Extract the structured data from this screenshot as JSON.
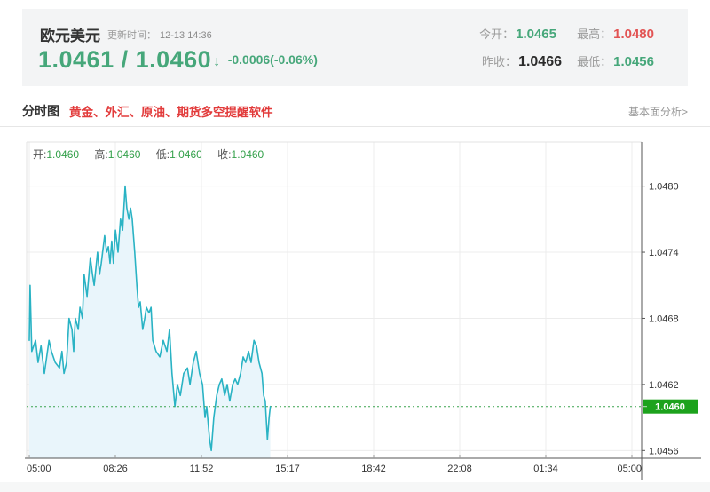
{
  "header": {
    "title": "欧元美元",
    "update_label": "更新时间：",
    "update_time": "12-13 14:36",
    "bid": "1.0461",
    "separator": " / ",
    "ask": "1.0460",
    "arrow": "↓",
    "change": "-0.0006(-0.06%)",
    "quotes": [
      {
        "label": "今开：",
        "value": "1.0465",
        "color": "green"
      },
      {
        "label": "最高：",
        "value": "1.0480",
        "color": "red"
      },
      {
        "label": "昨收：",
        "value": "1.0466",
        "color": "dark"
      },
      {
        "label": "最低：",
        "value": "1.0456",
        "color": "green"
      }
    ],
    "colors": {
      "up_down_green": "#46a77a",
      "high_red": "#e25353",
      "neutral_dark": "#2b2b2b"
    }
  },
  "tabbar": {
    "tab": "分时图",
    "promo": "黄金、外汇、原油、期货多空提醒软件",
    "link": "基本面分析>"
  },
  "chart_data": {
    "type": "line",
    "title": "欧元美元分时图",
    "legend": {
      "open_label": "开:",
      "open_value": "1.0460",
      "high_label": "高:",
      "high_value": "1.0460",
      "low_label": "低:",
      "low_value": "1.0460",
      "close_label": "收:",
      "close_value": "1.0460"
    },
    "x_ticks": [
      "05:00",
      "08:26",
      "11:52",
      "15:17",
      "18:42",
      "22:08",
      "01:34",
      "05:00"
    ],
    "x_range_minutes": [
      0,
      1440
    ],
    "y_ticks": [
      "1.0480",
      "1.0474",
      "1.0468",
      "1.0462",
      "1.0456"
    ],
    "ylim": [
      1.04553,
      1.0484
    ],
    "grid": true,
    "legend_position": "top-left",
    "current_price": "1.0460",
    "current_price_value": 1.046,
    "series": [
      {
        "name": "price",
        "points": [
          [
            0,
            1.0466
          ],
          [
            2,
            1.0471
          ],
          [
            6,
            1.0465
          ],
          [
            15,
            1.0466
          ],
          [
            21,
            1.0464
          ],
          [
            28,
            1.04655
          ],
          [
            36,
            1.0463
          ],
          [
            47,
            1.0466
          ],
          [
            53,
            1.0465
          ],
          [
            62,
            1.0464
          ],
          [
            72,
            1.04635
          ],
          [
            78,
            1.0465
          ],
          [
            83,
            1.0463
          ],
          [
            89,
            1.0464
          ],
          [
            95,
            1.0468
          ],
          [
            102,
            1.0467
          ],
          [
            106,
            1.0465
          ],
          [
            110,
            1.0468
          ],
          [
            117,
            1.0467
          ],
          [
            121,
            1.0469
          ],
          [
            127,
            1.0468
          ],
          [
            131,
            1.0472
          ],
          [
            138,
            1.047
          ],
          [
            146,
            1.04735
          ],
          [
            151,
            1.0472
          ],
          [
            155,
            1.0471
          ],
          [
            163,
            1.0474
          ],
          [
            168,
            1.0472
          ],
          [
            172,
            1.0473
          ],
          [
            180,
            1.04755
          ],
          [
            185,
            1.0474
          ],
          [
            189,
            1.04745
          ],
          [
            193,
            1.0473
          ],
          [
            197,
            1.0475
          ],
          [
            201,
            1.0473
          ],
          [
            206,
            1.0476
          ],
          [
            212,
            1.0474
          ],
          [
            218,
            1.0477
          ],
          [
            223,
            1.0476
          ],
          [
            229,
            1.048
          ],
          [
            233,
            1.0478
          ],
          [
            238,
            1.0477
          ],
          [
            242,
            1.0478
          ],
          [
            246,
            1.0477
          ],
          [
            252,
            1.0474
          ],
          [
            257,
            1.0471
          ],
          [
            261,
            1.0469
          ],
          [
            265,
            1.04695
          ],
          [
            271,
            1.0467
          ],
          [
            276,
            1.0468
          ],
          [
            280,
            1.0469
          ],
          [
            286,
            1.04685
          ],
          [
            291,
            1.0469
          ],
          [
            295,
            1.0466
          ],
          [
            303,
            1.0465
          ],
          [
            312,
            1.04645
          ],
          [
            320,
            1.0466
          ],
          [
            329,
            1.0465
          ],
          [
            335,
            1.0467
          ],
          [
            341,
            1.0463
          ],
          [
            348,
            1.046
          ],
          [
            354,
            1.0462
          ],
          [
            361,
            1.0461
          ],
          [
            369,
            1.0463
          ],
          [
            378,
            1.04635
          ],
          [
            384,
            1.0462
          ],
          [
            392,
            1.0464
          ],
          [
            399,
            1.0465
          ],
          [
            407,
            1.0463
          ],
          [
            414,
            1.0462
          ],
          [
            420,
            1.0459
          ],
          [
            424,
            1.046
          ],
          [
            431,
            1.0457
          ],
          [
            435,
            1.0456
          ],
          [
            441,
            1.0459
          ],
          [
            448,
            1.0461
          ],
          [
            454,
            1.0462
          ],
          [
            460,
            1.04625
          ],
          [
            467,
            1.0461
          ],
          [
            473,
            1.0462
          ],
          [
            479,
            1.04605
          ],
          [
            486,
            1.0462
          ],
          [
            492,
            1.04625
          ],
          [
            498,
            1.0462
          ],
          [
            505,
            1.0463
          ],
          [
            511,
            1.04645
          ],
          [
            517,
            1.0464
          ],
          [
            524,
            1.0465
          ],
          [
            530,
            1.0464
          ],
          [
            537,
            1.0466
          ],
          [
            543,
            1.04655
          ],
          [
            549,
            1.0464
          ],
          [
            556,
            1.0463
          ],
          [
            560,
            1.0461
          ],
          [
            564,
            1.04605
          ],
          [
            569,
            1.0457
          ],
          [
            573,
            1.0459
          ],
          [
            576,
            1.046
          ]
        ]
      }
    ],
    "colors": {
      "line": "#2ab3c4",
      "fill": "#e9f5fb",
      "current_line": "#3aa34e",
      "badge_bg": "#1ca21c",
      "badge_text": "#ffffff",
      "grid": "#ececec",
      "plot_border": "#e3e3e3",
      "axis": "#555555",
      "tick_text": "#333333"
    }
  }
}
